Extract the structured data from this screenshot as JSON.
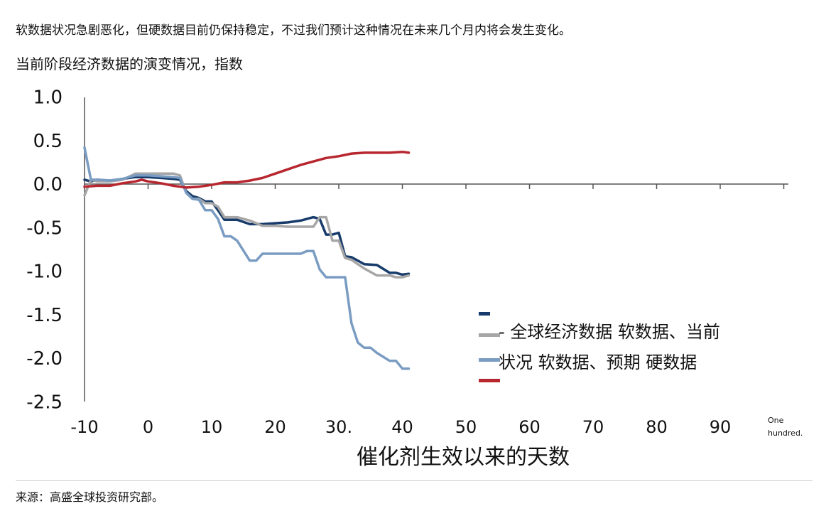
{
  "header_note": "软数据状况急剧恶化，但硬数据目前仍保持稳定，不过我们预计这种情况在未来几个月内将会发生变化。",
  "source": "来源：高盛全球投资研究部。",
  "chart_data": {
    "type": "line",
    "title": "当前阶段经济数据的演变情况，指数",
    "xlabel": "催化剂生效以来的天数",
    "ylabel": "",
    "xlim": [
      -10,
      100
    ],
    "ylim": [
      -2.5,
      1.0
    ],
    "x_ticks": [
      "-10",
      "0",
      "10",
      "20",
      "30.",
      "40",
      "50",
      "60",
      "70",
      "80",
      "90"
    ],
    "x_tick_last": [
      "One",
      "hundred."
    ],
    "y_ticks": [
      "1.0",
      "0.5",
      "0.0",
      "-0.5",
      "-1.0",
      "-1.5",
      "-2.0",
      "-2.5"
    ],
    "legend_lines": [
      "- 全球经济数据  软数据、当前",
      "状况  软数据、预期  硬数据"
    ],
    "legend_position": "right",
    "series": [
      {
        "color": "#173c6b",
        "x": [
          -10,
          -9,
          -8,
          -6,
          -4,
          -2,
          0,
          2,
          4,
          5,
          6,
          7,
          8,
          9,
          10,
          11,
          12,
          13,
          14,
          16,
          18,
          20,
          22,
          24,
          26,
          27,
          28,
          29,
          30,
          31,
          32,
          34,
          36,
          38,
          39,
          40,
          41
        ],
        "y": [
          0.05,
          0.03,
          0.05,
          0.04,
          0.06,
          0.08,
          0.08,
          0.07,
          0.06,
          0.05,
          -0.08,
          -0.14,
          -0.16,
          -0.2,
          -0.2,
          -0.3,
          -0.41,
          -0.41,
          -0.41,
          -0.46,
          -0.46,
          -0.45,
          -0.44,
          -0.42,
          -0.38,
          -0.4,
          -0.58,
          -0.58,
          -0.56,
          -0.83,
          -0.84,
          -0.92,
          -0.93,
          -1.02,
          -1.02,
          -1.04,
          -1.03
        ]
      },
      {
        "color": "#a6a6a6",
        "x": [
          -10,
          -9,
          -8,
          -6,
          -4,
          -2,
          0,
          2,
          4,
          5,
          6,
          7,
          8,
          9,
          10,
          11,
          12,
          13,
          14,
          16,
          18,
          20,
          22,
          24,
          26,
          27,
          28,
          29,
          30,
          31,
          32,
          34,
          36,
          38,
          39,
          40,
          41
        ],
        "y": [
          -0.13,
          0.05,
          0.03,
          0.03,
          0.05,
          0.12,
          0.12,
          0.12,
          0.12,
          0.1,
          -0.1,
          -0.17,
          -0.17,
          -0.22,
          -0.22,
          -0.26,
          -0.38,
          -0.38,
          -0.38,
          -0.42,
          -0.48,
          -0.48,
          -0.49,
          -0.49,
          -0.49,
          -0.38,
          -0.38,
          -0.65,
          -0.65,
          -0.85,
          -0.87,
          -0.97,
          -1.05,
          -1.05,
          -1.07,
          -1.07,
          -1.05
        ]
      },
      {
        "color": "#7a9cc2",
        "x": [
          -10,
          -9,
          -8,
          -6,
          -4,
          -2,
          0,
          2,
          4,
          5,
          6,
          7,
          8,
          9,
          10,
          11,
          12,
          13,
          14,
          16,
          17,
          18,
          20,
          22,
          24,
          25,
          26,
          27,
          28,
          30,
          31,
          32,
          33,
          34,
          35,
          36,
          38,
          39,
          40,
          41
        ],
        "y": [
          0.42,
          0.05,
          0.05,
          0.04,
          0.06,
          0.1,
          0.1,
          0.09,
          0.08,
          0.07,
          -0.1,
          -0.17,
          -0.18,
          -0.3,
          -0.3,
          -0.4,
          -0.6,
          -0.6,
          -0.65,
          -0.88,
          -0.88,
          -0.8,
          -0.8,
          -0.8,
          -0.8,
          -0.77,
          -0.77,
          -0.98,
          -1.07,
          -1.07,
          -1.07,
          -1.6,
          -1.82,
          -1.88,
          -1.88,
          -1.94,
          -2.03,
          -2.03,
          -2.12,
          -2.12
        ]
      },
      {
        "color": "#b8262f",
        "x": [
          -10,
          -8,
          -6,
          -4,
          -2,
          -1,
          0,
          2,
          4,
          6,
          8,
          10,
          12,
          14,
          16,
          18,
          20,
          22,
          24,
          26,
          28,
          30,
          32,
          34,
          36,
          38,
          40,
          41
        ],
        "y": [
          -0.03,
          -0.02,
          -0.02,
          0.01,
          0.03,
          0.05,
          0.03,
          0.01,
          -0.02,
          -0.04,
          -0.03,
          -0.01,
          0.02,
          0.02,
          0.04,
          0.07,
          0.12,
          0.17,
          0.22,
          0.26,
          0.3,
          0.32,
          0.35,
          0.36,
          0.36,
          0.36,
          0.37,
          0.36
        ]
      }
    ]
  }
}
